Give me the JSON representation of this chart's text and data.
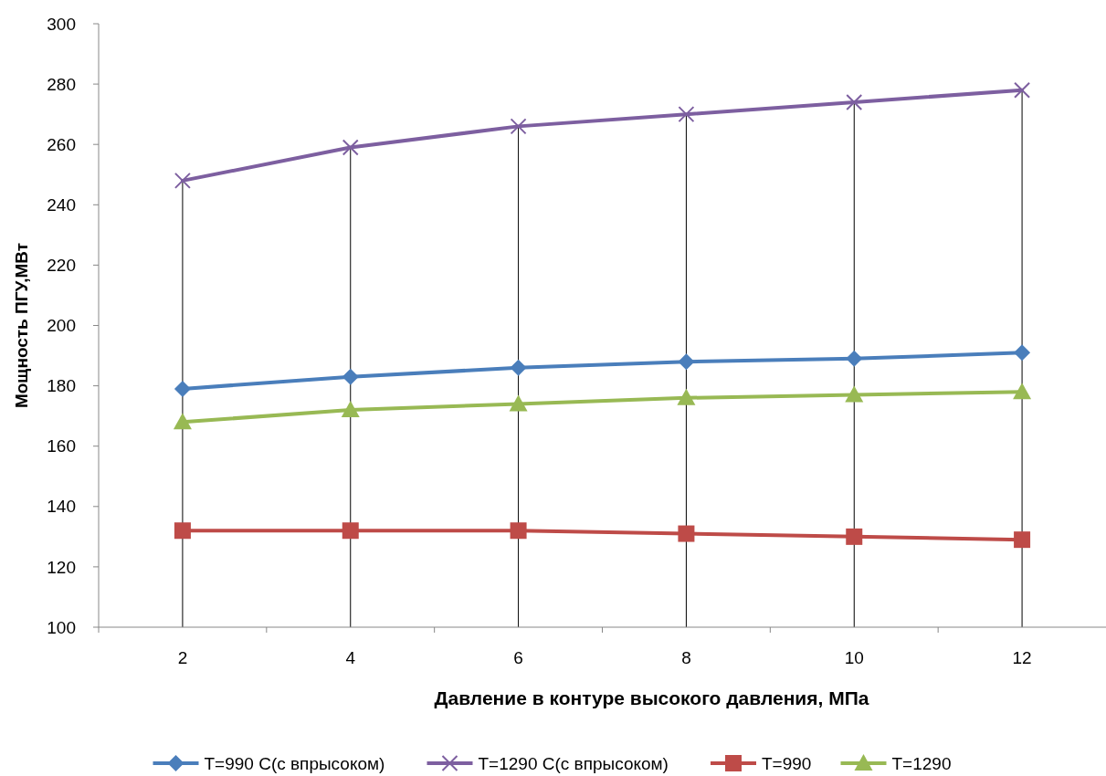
{
  "chart_data": {
    "type": "line",
    "xlabel": "Давление в контуре высокого давления, МПа",
    "ylabel": "Мощность ПГУ,МВт",
    "categories": [
      "2",
      "4",
      "6",
      "8",
      "10",
      "12"
    ],
    "ylim": [
      100,
      300
    ],
    "yticks": [
      100,
      120,
      140,
      160,
      180,
      200,
      220,
      240,
      260,
      280,
      300
    ],
    "grid": "x",
    "legend": "bottom",
    "line_style": "solid",
    "series": [
      {
        "name": "T=990 C(с впрысоком)",
        "color": "#4a7ebb",
        "marker": "diamond",
        "values": [
          179,
          183,
          186,
          188,
          189,
          191
        ]
      },
      {
        "name": "T=1290 C(с впрысоком)",
        "color": "#7d5fa0",
        "marker": "cross",
        "values": [
          248,
          259,
          266,
          270,
          274,
          278
        ]
      },
      {
        "name": "T=990",
        "color": "#be4b48",
        "marker": "square",
        "values": [
          132,
          132,
          132,
          131,
          130,
          129
        ]
      },
      {
        "name": "T=1290",
        "color": "#98b954",
        "marker": "triangle",
        "values": [
          168,
          172,
          174,
          176,
          177,
          178
        ]
      }
    ]
  }
}
